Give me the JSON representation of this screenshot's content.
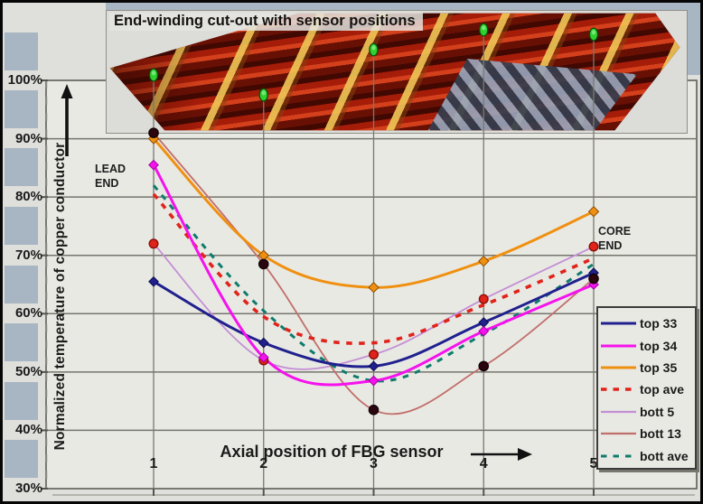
{
  "photo": {
    "title": "End-winding cut-out with sensor positions",
    "sensor_marker_color": "#2ed12e"
  },
  "labels": {
    "lead_end": [
      "LEAD",
      "END"
    ],
    "core_end": [
      "CORE",
      "END"
    ]
  },
  "chart_data": {
    "type": "line",
    "title": "",
    "xlabel": "Axial position of FBG sensor",
    "ylabel": "Normalized temperature of copper conductor",
    "x": [
      1,
      2,
      3,
      4,
      5
    ],
    "x_tick_labels": [
      "1",
      "2",
      "3",
      "4",
      "5"
    ],
    "y_tick_labels": [
      "100%",
      "90%",
      "80%",
      "70%",
      "60%",
      "50%",
      "40%",
      "30%"
    ],
    "y_tick_values": [
      100,
      90,
      80,
      70,
      60,
      50,
      40,
      30
    ],
    "ylim": [
      30,
      100
    ],
    "y_unit": "%",
    "grid": true,
    "legend_position": "lower right",
    "series": [
      {
        "name": "top 33",
        "values": [
          65.5,
          55,
          51,
          58.5,
          67
        ],
        "color": "#20208e",
        "style": "solid",
        "width": 3,
        "marker": "diamond",
        "marker_color": "#20208e"
      },
      {
        "name": "top 34",
        "values": [
          85.5,
          52.5,
          48.5,
          57,
          65
        ],
        "color": "#f512ec",
        "style": "solid",
        "width": 3,
        "marker": "diamond",
        "marker_color": "#f512ec"
      },
      {
        "name": "top 35",
        "values": [
          90,
          70,
          64.5,
          69,
          77.5
        ],
        "color": "#ef9011",
        "style": "solid",
        "width": 3,
        "marker": "diamond",
        "marker_color": "#ef9011"
      },
      {
        "name": "top ave",
        "values": [
          80.5,
          59.5,
          55,
          61.5,
          69.5
        ],
        "color": "#e0241b",
        "style": "dashed",
        "width": 3.6,
        "marker": "none",
        "marker_color": ""
      },
      {
        "name": "bott 5",
        "values": [
          72,
          52,
          53,
          62.5,
          71.5
        ],
        "color": "#c48fd4",
        "style": "solid",
        "width": 1.8,
        "marker": "circle",
        "marker_color": "#e0241b"
      },
      {
        "name": "bott 13",
        "values": [
          91,
          68.5,
          43.5,
          51,
          66
        ],
        "color": "#c16f6b",
        "style": "solid",
        "width": 1.8,
        "marker": "circle",
        "marker_color": "#2b060e"
      },
      {
        "name": "bott ave",
        "values": [
          82,
          60.5,
          48.5,
          56.5,
          68.5
        ],
        "color": "#0e7c6d",
        "style": "dashed",
        "width": 3,
        "marker": "none",
        "marker_color": ""
      }
    ],
    "annotations": [
      "LEAD END",
      "CORE END"
    ]
  }
}
